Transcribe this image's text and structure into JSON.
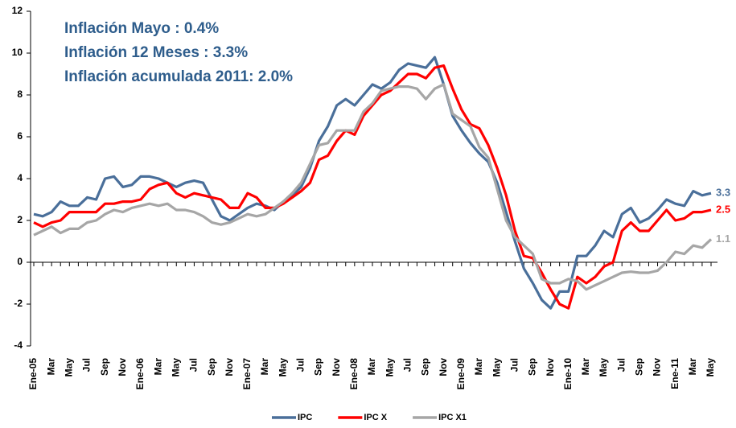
{
  "chart_data": {
    "type": "line",
    "annotations": [
      "Inflación Mayo : 0.4%",
      "Inflación 12 Meses :  3.3%",
      "Inflación acumulada 2011: 2.0%"
    ],
    "categories": [
      "Ene-05",
      null,
      "Mar",
      null,
      "May",
      null,
      "Jul",
      null,
      "Sep",
      null,
      "Nov",
      null,
      "Ene-06",
      null,
      "Mar",
      null,
      "May",
      null,
      "Jul",
      null,
      "Sep",
      null,
      "Nov",
      null,
      "Ene-07",
      null,
      "Mar",
      null,
      "May",
      null,
      "Jul",
      null,
      "Sep",
      null,
      "Nov",
      null,
      "Ene-08",
      null,
      "Mar",
      null,
      "May",
      null,
      "Jul",
      null,
      "Sep",
      null,
      "Nov",
      null,
      "Ene-09",
      null,
      "Mar",
      null,
      "May",
      null,
      "Jul",
      null,
      "Sep",
      null,
      "Nov",
      null,
      "Ene-10",
      null,
      "Mar",
      null,
      "May",
      null,
      "Jul",
      null,
      "Sep",
      null,
      "Nov",
      null,
      "Ene-11",
      null,
      "Mar",
      null,
      "May"
    ],
    "series": [
      {
        "name": "IPC",
        "color": "#4a6f9a",
        "values": [
          2.3,
          2.2,
          2.4,
          2.9,
          2.7,
          2.7,
          3.1,
          3.0,
          4.0,
          4.1,
          3.6,
          3.7,
          4.1,
          4.1,
          4.0,
          3.8,
          3.6,
          3.8,
          3.9,
          3.8,
          3.0,
          2.2,
          2.0,
          2.3,
          2.6,
          2.8,
          2.7,
          2.5,
          2.9,
          3.2,
          3.6,
          4.5,
          5.8,
          6.5,
          7.5,
          7.8,
          7.5,
          8.0,
          8.5,
          8.3,
          8.6,
          9.2,
          9.5,
          9.4,
          9.3,
          9.8,
          8.5,
          7.0,
          6.3,
          5.7,
          5.2,
          4.8,
          3.8,
          2.4,
          1.0,
          -0.3,
          -1.0,
          -1.8,
          -2.2,
          -1.4,
          -1.4,
          0.3,
          0.3,
          0.8,
          1.5,
          1.2,
          2.3,
          2.6,
          1.9,
          2.1,
          2.5,
          3.0,
          2.8,
          2.7,
          3.4,
          3.2,
          3.3
        ]
      },
      {
        "name": "IPC X",
        "color": "#ff0000",
        "values": [
          1.9,
          1.7,
          1.9,
          2.0,
          2.4,
          2.4,
          2.4,
          2.4,
          2.8,
          2.8,
          2.9,
          2.9,
          3.0,
          3.5,
          3.7,
          3.8,
          3.3,
          3.1,
          3.3,
          3.2,
          3.1,
          3.0,
          2.6,
          2.6,
          3.3,
          3.1,
          2.6,
          2.6,
          2.8,
          3.1,
          3.4,
          3.8,
          4.9,
          5.1,
          5.8,
          6.3,
          6.1,
          7.0,
          7.5,
          8.0,
          8.2,
          8.6,
          9.0,
          9.0,
          8.8,
          9.3,
          9.4,
          8.3,
          7.3,
          6.6,
          6.4,
          5.6,
          4.5,
          3.2,
          1.5,
          0.3,
          0.2,
          -0.5,
          -1.3,
          -2.0,
          -2.2,
          -0.7,
          -1.0,
          -0.7,
          -0.2,
          0.0,
          1.5,
          1.9,
          1.5,
          1.5,
          2.0,
          2.5,
          2.0,
          2.1,
          2.4,
          2.4,
          2.5
        ]
      },
      {
        "name": "IPC X1",
        "color": "#a6a6a6",
        "values": [
          1.3,
          1.5,
          1.7,
          1.4,
          1.6,
          1.6,
          1.9,
          2.0,
          2.3,
          2.5,
          2.4,
          2.6,
          2.7,
          2.8,
          2.7,
          2.8,
          2.5,
          2.5,
          2.4,
          2.2,
          1.9,
          1.8,
          1.9,
          2.1,
          2.3,
          2.2,
          2.3,
          2.6,
          2.9,
          3.3,
          3.8,
          4.7,
          5.6,
          5.7,
          6.3,
          6.3,
          6.3,
          7.2,
          7.6,
          8.2,
          8.3,
          8.4,
          8.4,
          8.3,
          7.8,
          8.3,
          8.5,
          7.1,
          6.8,
          6.5,
          5.5,
          5.0,
          3.5,
          2.0,
          1.2,
          0.8,
          0.4,
          -0.8,
          -1.0,
          -1.0,
          -0.8,
          -0.9,
          -1.3,
          -1.1,
          -0.9,
          -0.7,
          -0.5,
          -0.45,
          -0.5,
          -0.5,
          -0.4,
          0.0,
          0.5,
          0.4,
          0.8,
          0.7,
          1.1
        ]
      }
    ],
    "ylim": [
      -4,
      12
    ],
    "yticks": [
      -4,
      -2,
      0,
      2,
      4,
      6,
      8,
      10,
      12
    ],
    "grid": false,
    "legend": "bottom"
  }
}
